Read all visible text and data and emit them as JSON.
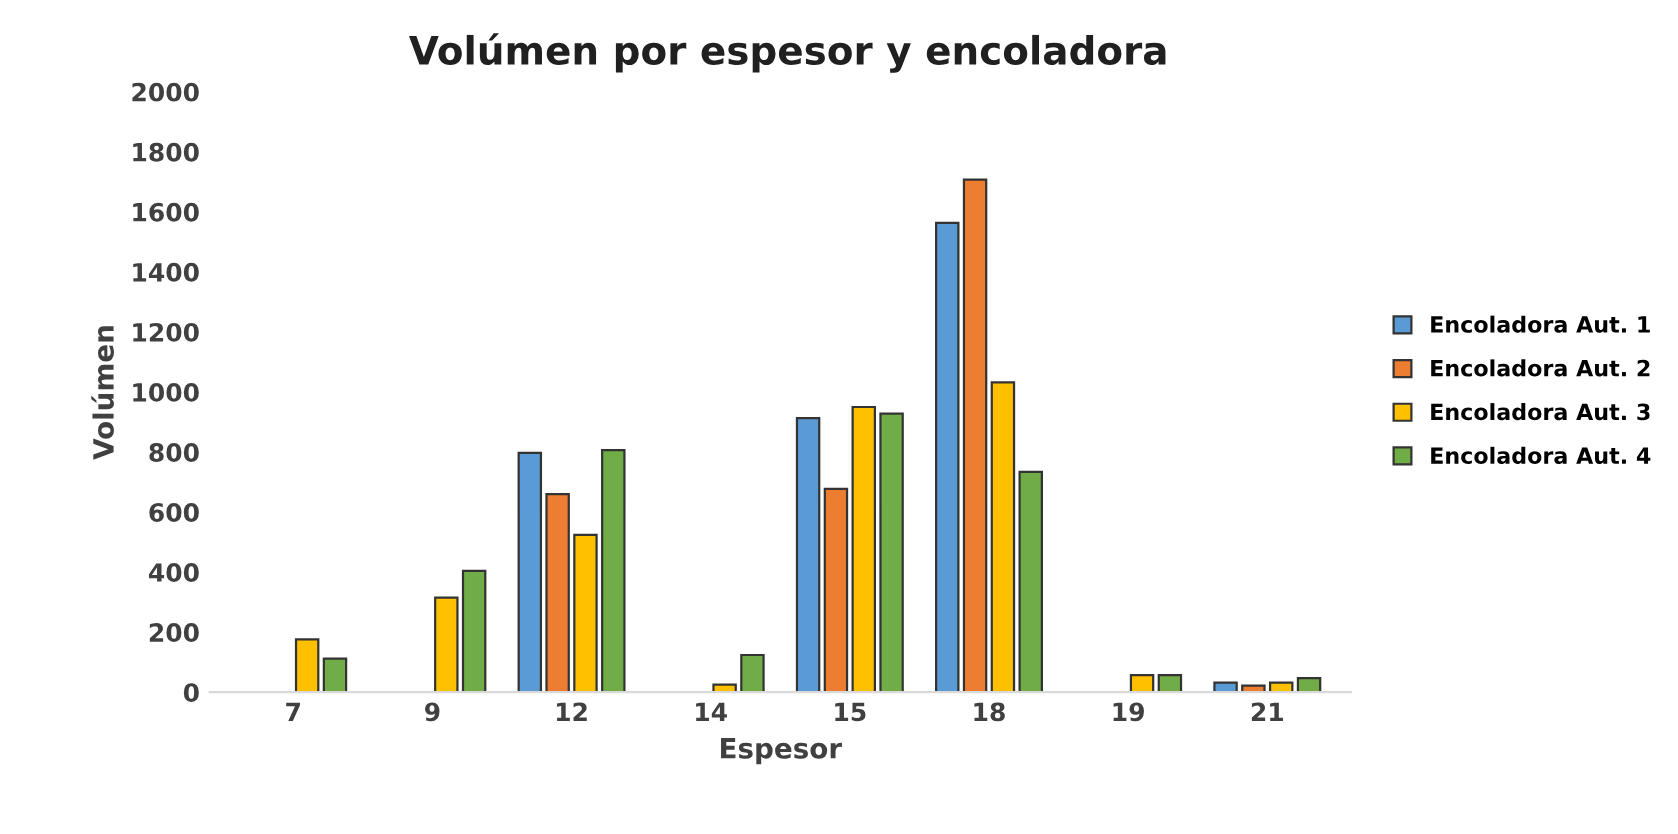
{
  "chart_data": {
    "type": "bar",
    "title": "Volúmen por espesor y encoladora",
    "xlabel": "Espesor",
    "ylabel": "Volúmen",
    "categories": [
      "7",
      "9",
      "12",
      "14",
      "15",
      "18",
      "19",
      "21"
    ],
    "series": [
      {
        "name": "Encoladora Aut. 1",
        "color": "#5b9bd5",
        "values": [
          null,
          null,
          797,
          null,
          913,
          1563,
          null,
          32
        ]
      },
      {
        "name": "Encoladora Aut. 2",
        "color": "#ed7d31",
        "values": [
          null,
          null,
          660,
          null,
          677,
          1707,
          null,
          22
        ]
      },
      {
        "name": "Encoladora Aut. 3",
        "color": "#ffc000",
        "values": [
          176,
          315,
          524,
          25,
          950,
          1032,
          57,
          32
        ]
      },
      {
        "name": "Encoladora Aut. 4",
        "color": "#70ad47",
        "values": [
          112,
          404,
          806,
          124,
          928,
          734,
          57,
          47
        ]
      }
    ],
    "ylim": [
      0,
      2000
    ],
    "yticks": [
      0,
      200,
      400,
      600,
      800,
      1000,
      1200,
      1400,
      1600,
      1800,
      2000
    ],
    "grid": false,
    "legend": "right"
  }
}
